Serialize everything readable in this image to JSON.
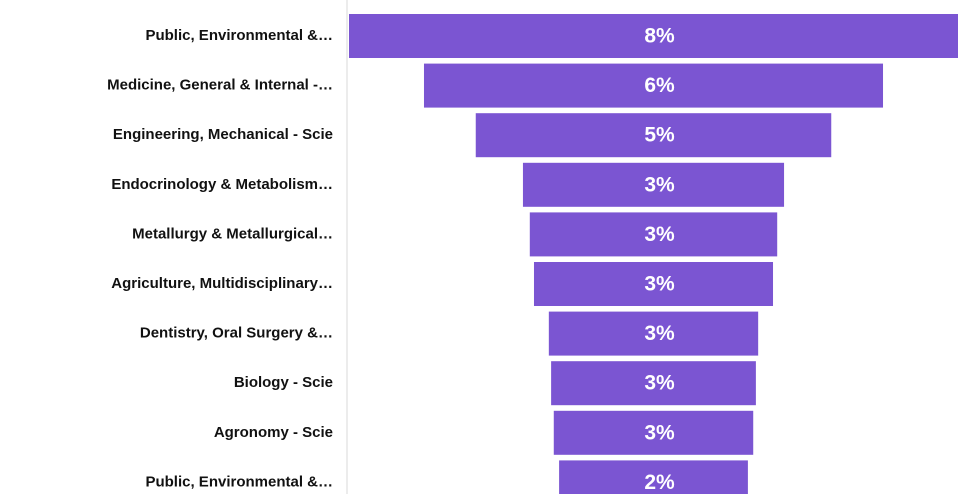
{
  "chart_data": {
    "type": "funnel",
    "categories": [
      "Public, Environmental &…",
      "Medicine, General & Internal -…",
      "Engineering, Mechanical - Scie",
      "Endocrinology & Metabolism…",
      "Metallurgy & Metallurgical…",
      "Agriculture, Multidisciplinary…",
      "Dentistry, Oral Surgery &…",
      "Biology - Scie",
      "Agronomy - Scie",
      "Public, Environmental &…"
    ],
    "values": [
      8.0,
      6.03,
      4.67,
      3.43,
      3.25,
      3.14,
      2.75,
      2.69,
      2.62,
      2.48
    ],
    "value_labels": [
      "8%",
      "6%",
      "5%",
      "3%",
      "3%",
      "3%",
      "3%",
      "3%",
      "3%",
      "2%"
    ],
    "color": "#7b55d2"
  }
}
